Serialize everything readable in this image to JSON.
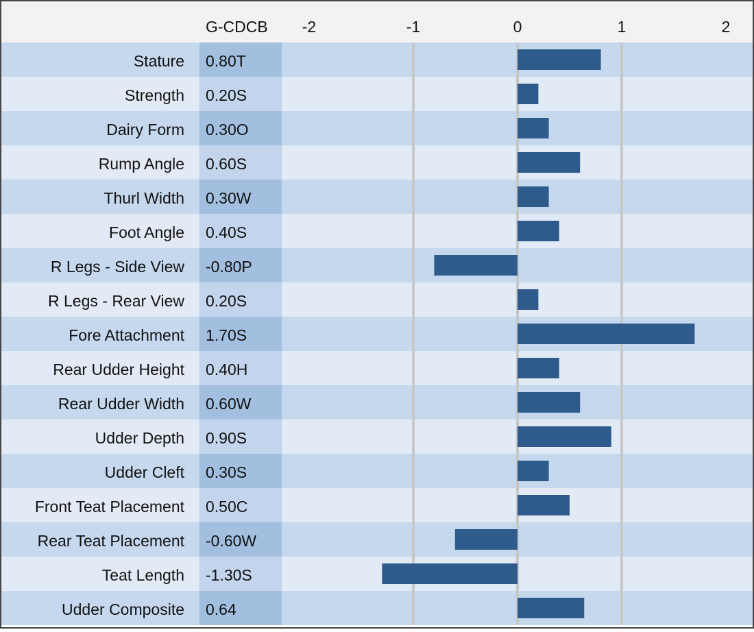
{
  "chart_data": {
    "type": "bar",
    "orientation": "horizontal",
    "column_header": "G-CDCB",
    "categories": [
      "Stature",
      "Strength",
      "Dairy Form",
      "Rump Angle",
      "Thurl Width",
      "Foot Angle",
      "R Legs - Side View",
      "R Legs - Rear View",
      "Fore Attachment",
      "Rear Udder Height",
      "Rear Udder Width",
      "Udder Depth",
      "Udder Cleft",
      "Front Teat Placement",
      "Rear Teat Placement",
      "Teat Length",
      "Udder Composite"
    ],
    "values": [
      0.8,
      0.2,
      0.3,
      0.6,
      0.3,
      0.4,
      -0.8,
      0.2,
      1.7,
      0.4,
      0.6,
      0.9,
      0.3,
      0.5,
      -0.6,
      -1.3,
      0.64
    ],
    "value_labels": [
      "0.80T",
      "0.20S",
      "0.30O",
      "0.60S",
      "0.30W",
      "0.40S",
      "-0.80P",
      "0.20S",
      "1.70S",
      "0.40H",
      "0.60W",
      "0.90S",
      "0.30S",
      "0.50C",
      "-0.60W",
      "-1.30S",
      "0.64"
    ],
    "color": "#2e5a8c",
    "xlim": [
      -2,
      2
    ],
    "xticks": [
      -2,
      -1,
      0,
      1,
      2
    ],
    "grid": true
  }
}
